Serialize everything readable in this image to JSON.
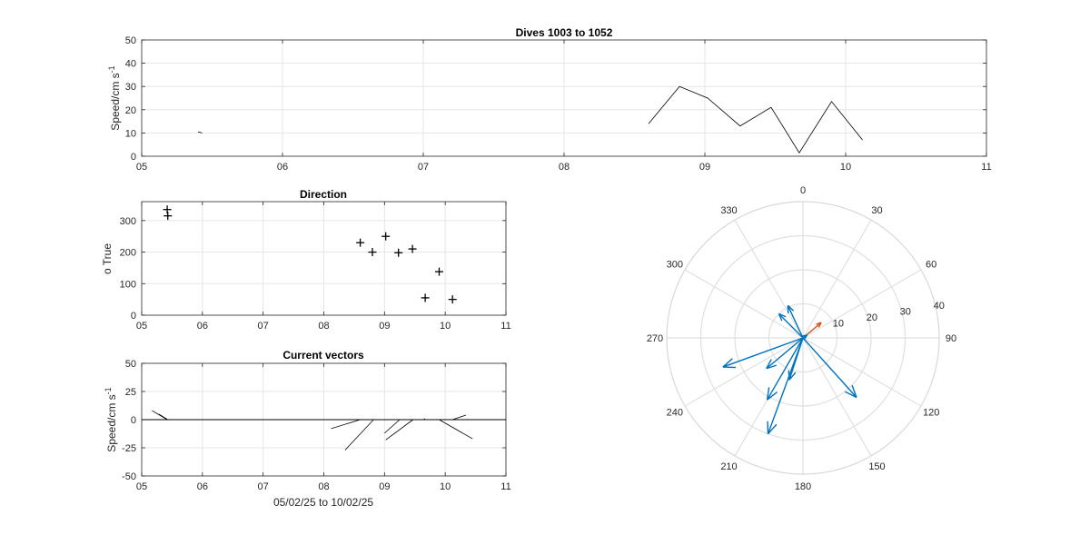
{
  "chart_data": [
    {
      "id": "speed",
      "type": "line",
      "title": "Dives 1003 to 1052",
      "xlabel": "",
      "ylabel": "Speed/cm s",
      "ylabel_sup": "-1",
      "xlim": [
        5,
        11
      ],
      "ylim": [
        0,
        50
      ],
      "xticks": [
        "05",
        "06",
        "07",
        "08",
        "09",
        "10",
        "11"
      ],
      "yticks": [
        "0",
        "10",
        "20",
        "30",
        "40",
        "50"
      ],
      "segments": [
        {
          "x": [
            5.4,
            5.43
          ],
          "y": [
            10.5,
            10.0
          ]
        },
        {
          "x": [
            8.6,
            8.82,
            9.02,
            9.25,
            9.47,
            9.67,
            9.9,
            10.12
          ],
          "y": [
            14,
            30,
            25,
            13,
            21,
            1.5,
            23.5,
            7
          ]
        }
      ],
      "grid": true
    },
    {
      "id": "direction",
      "type": "scatter",
      "title": "Direction",
      "ylabel": "o True",
      "xlim": [
        5,
        11
      ],
      "ylim": [
        0,
        360
      ],
      "xticks": [
        "05",
        "06",
        "07",
        "08",
        "09",
        "10",
        "11"
      ],
      "yticks": [
        "0",
        "100",
        "200",
        "300"
      ],
      "x": [
        5.42,
        5.43,
        8.6,
        8.8,
        9.02,
        9.23,
        9.46,
        9.67,
        9.9,
        10.12
      ],
      "y": [
        335,
        315,
        230,
        200,
        250,
        198,
        210,
        55,
        138,
        50
      ],
      "marker": "+",
      "grid": true
    },
    {
      "id": "vectors",
      "type": "line",
      "title": "Current vectors",
      "xlabel": "05/02/25 to 10/02/25",
      "ylabel": "Speed/cm s",
      "ylabel_sup": "-1",
      "xlim": [
        5,
        11
      ],
      "ylim": [
        -50,
        50
      ],
      "xticks": [
        "05",
        "06",
        "07",
        "08",
        "09",
        "10",
        "11"
      ],
      "yticks": [
        "-50",
        "-25",
        "0",
        "25",
        "50"
      ],
      "sticks": [
        {
          "x": 5.42,
          "u": -0.25,
          "v": 8
        },
        {
          "x": 5.43,
          "u": -0.15,
          "v": 5
        },
        {
          "x": 8.6,
          "u": -0.48,
          "v": -8
        },
        {
          "x": 8.82,
          "u": -0.47,
          "v": -27
        },
        {
          "x": 9.02,
          "u": -0.48,
          "v": 0
        },
        {
          "x": 9.25,
          "u": -0.25,
          "v": -12
        },
        {
          "x": 9.47,
          "u": -0.45,
          "v": -18
        },
        {
          "x": 9.67,
          "u": -0.02,
          "v": 1
        },
        {
          "x": 9.9,
          "u": 0.55,
          "v": -17
        },
        {
          "x": 10.12,
          "u": 0.22,
          "v": 4
        }
      ],
      "grid": true
    },
    {
      "id": "polar",
      "type": "polar",
      "angle_ticks": [
        "0",
        "30",
        "60",
        "90",
        "120",
        "150",
        "180",
        "210",
        "240",
        "270",
        "300",
        "330"
      ],
      "radial_ticks": [
        "10",
        "20",
        "30",
        "40"
      ],
      "rmax": 40,
      "vectors": [
        {
          "dir": 335,
          "speed": 10.5,
          "color": "#0072BD"
        },
        {
          "dir": 315,
          "speed": 10,
          "color": "#0072BD"
        },
        {
          "dir": 230,
          "speed": 14,
          "color": "#0072BD"
        },
        {
          "dir": 200,
          "speed": 30,
          "color": "#0072BD"
        },
        {
          "dir": 250,
          "speed": 25,
          "color": "#0072BD"
        },
        {
          "dir": 198,
          "speed": 13,
          "color": "#0072BD"
        },
        {
          "dir": 210,
          "speed": 21,
          "color": "#0072BD"
        },
        {
          "dir": 138,
          "speed": 23.5,
          "color": "#0072BD"
        },
        {
          "dir": 50,
          "speed": 7,
          "color": "#D95319"
        },
        {
          "dir": 55,
          "speed": 1.5,
          "color": "#0072BD"
        }
      ]
    }
  ]
}
